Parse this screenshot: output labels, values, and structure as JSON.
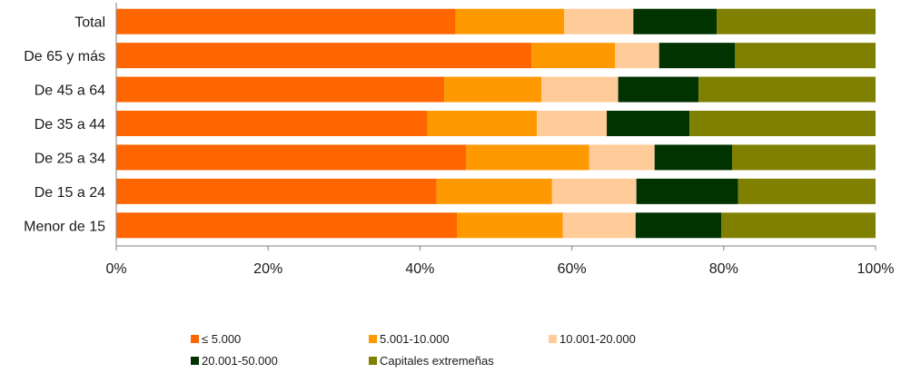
{
  "chart_data": {
    "type": "bar",
    "orientation": "horizontal",
    "stacked": "percent",
    "categories": [
      "Total",
      "De 65 y más",
      "De 45 a 64",
      "De 35 a 44",
      "De 25 a 34",
      "De 15 a 24",
      "Menor de 15"
    ],
    "series": [
      {
        "name": "≤ 5.000",
        "color": "#ff6600",
        "values": [
          44.7,
          54.7,
          43.2,
          41.0,
          46.1,
          42.2,
          44.9
        ]
      },
      {
        "name": "5.001-10.000",
        "color": "#ff9900",
        "values": [
          14.3,
          11.0,
          12.8,
          14.4,
          16.2,
          15.2,
          13.9
        ]
      },
      {
        "name": "10.001-20.000",
        "color": "#ffcc99",
        "values": [
          9.1,
          5.8,
          10.1,
          9.2,
          8.6,
          11.1,
          9.6
        ]
      },
      {
        "name": "20.001-50.000",
        "color": "#003300",
        "values": [
          11.0,
          10.0,
          10.6,
          10.9,
          10.2,
          13.4,
          11.3
        ]
      },
      {
        "name": "Capitales extremeñas",
        "color": "#808000",
        "values": [
          20.9,
          18.5,
          23.3,
          24.5,
          18.9,
          18.1,
          20.3
        ]
      }
    ],
    "xlim": [
      0,
      100
    ],
    "x_ticks": [
      "0%",
      "20%",
      "40%",
      "60%",
      "80%",
      "100%"
    ],
    "legend_position": "bottom",
    "grid": false
  }
}
